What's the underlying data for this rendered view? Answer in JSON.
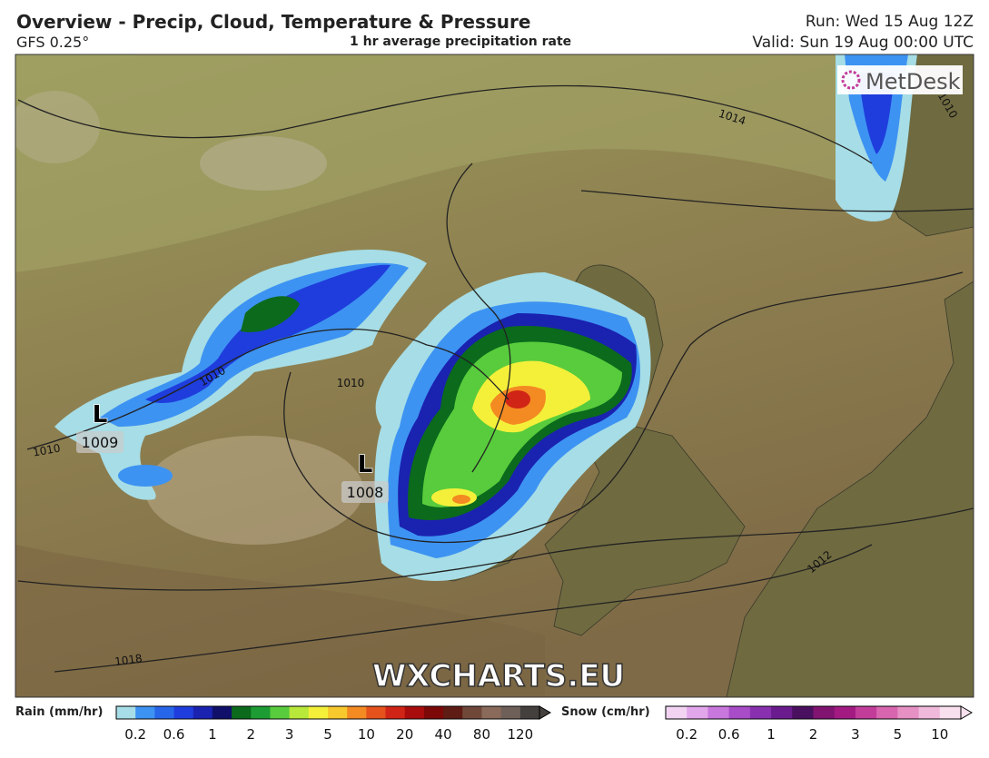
{
  "header": {
    "title": "Overview - Precip, Cloud, Temperature & Pressure",
    "model": "GFS 0.25°",
    "subtitle": "1 hr average precipitation rate",
    "run": "Run: Wed 15 Aug 12Z",
    "valid": "Valid: Sun 19 Aug 00:00 UTC"
  },
  "logo": "MetDesk",
  "watermark": "WXCHARTS.EU",
  "isobar_labels": [
    1014,
    1010,
    1010,
    1010,
    1010,
    1012,
    1018
  ],
  "lows": [
    {
      "symbol": "L",
      "value": 1009
    },
    {
      "symbol": "L",
      "value": 1008
    }
  ],
  "rain_legend": {
    "title": "Rain (mm/hr)",
    "ticks": [
      0.2,
      0.6,
      1,
      2,
      3,
      5,
      10,
      20,
      40,
      80,
      120
    ],
    "colors": [
      "#a6dde6",
      "#3d93f2",
      "#2766e8",
      "#1f3ddc",
      "#1a22b0",
      "#10106a",
      "#0b6a1c",
      "#1d9c33",
      "#58cc3c",
      "#b8e83a",
      "#f4f03a",
      "#f7c92c",
      "#f48a22",
      "#e5521c",
      "#d02416",
      "#a80c0c",
      "#7c0808",
      "#5e1c14",
      "#70483a",
      "#8a6a5a",
      "#6e6058",
      "#44403e"
    ]
  },
  "snow_legend": {
    "title": "Snow (cm/hr)",
    "ticks": [
      0.2,
      0.6,
      1,
      2,
      3,
      5,
      10
    ],
    "colors": [
      "#f2d4f2",
      "#e2a6ea",
      "#c878dc",
      "#a84cc8",
      "#8830b0",
      "#6a1c8e",
      "#4a1060",
      "#801470",
      "#a21a82",
      "#c23c9a",
      "#d866ae",
      "#e690c4",
      "#f0b8da",
      "#f8e0ee"
    ]
  }
}
